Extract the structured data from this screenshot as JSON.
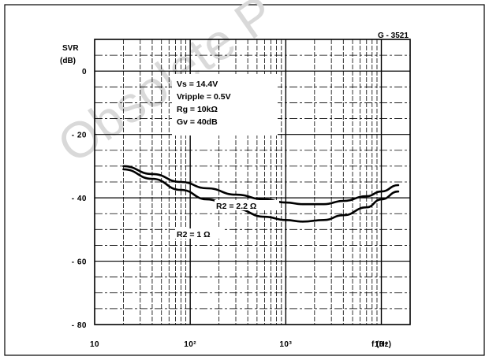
{
  "watermark": {
    "text": "Obsolete P"
  },
  "chart_data": {
    "type": "line",
    "figure_id": "G - 3521",
    "ylabel_top": "SVR",
    "ylabel_unit": "(dB)",
    "xlabel": "f (Hz)",
    "x_scale": "log",
    "xlim": [
      10,
      20000
    ],
    "ylim": [
      -80,
      10
    ],
    "y_ticks": [
      {
        "value": 0,
        "label": "0"
      },
      {
        "value": -20,
        "label": "- 20"
      },
      {
        "value": -40,
        "label": "- 40"
      },
      {
        "value": -60,
        "label": "- 60"
      },
      {
        "value": -80,
        "label": "- 80"
      }
    ],
    "x_ticks": [
      {
        "value": 10,
        "label": "10"
      },
      {
        "value": 100,
        "label": "10²"
      },
      {
        "value": 1000,
        "label": "10³"
      },
      {
        "value": 10000,
        "label": "10⁴"
      }
    ],
    "grid": true,
    "conditions": [
      "Vs = 14.4V",
      "Vripple = 0.5V",
      "Rg = 10kΩ",
      "Gv = 40dB"
    ],
    "series": [
      {
        "name": "R2 = 2.2 Ω",
        "x": [
          20,
          40,
          80,
          150,
          300,
          600,
          1000,
          1500,
          2500,
          4000,
          7000,
          10000,
          15000
        ],
        "y": [
          -30,
          -32.5,
          -35,
          -37,
          -39,
          -40.5,
          -41.5,
          -42,
          -42,
          -41,
          -39.5,
          -38,
          -36
        ]
      },
      {
        "name": "R2 = 1 Ω",
        "x": [
          20,
          40,
          80,
          150,
          300,
          600,
          1000,
          1500,
          2500,
          4000,
          7000,
          10000,
          15000
        ],
        "y": [
          -31,
          -34,
          -37.5,
          -40.5,
          -43.5,
          -46,
          -47,
          -47.5,
          -47,
          -45.5,
          -43,
          -40.5,
          -38
        ]
      }
    ]
  }
}
